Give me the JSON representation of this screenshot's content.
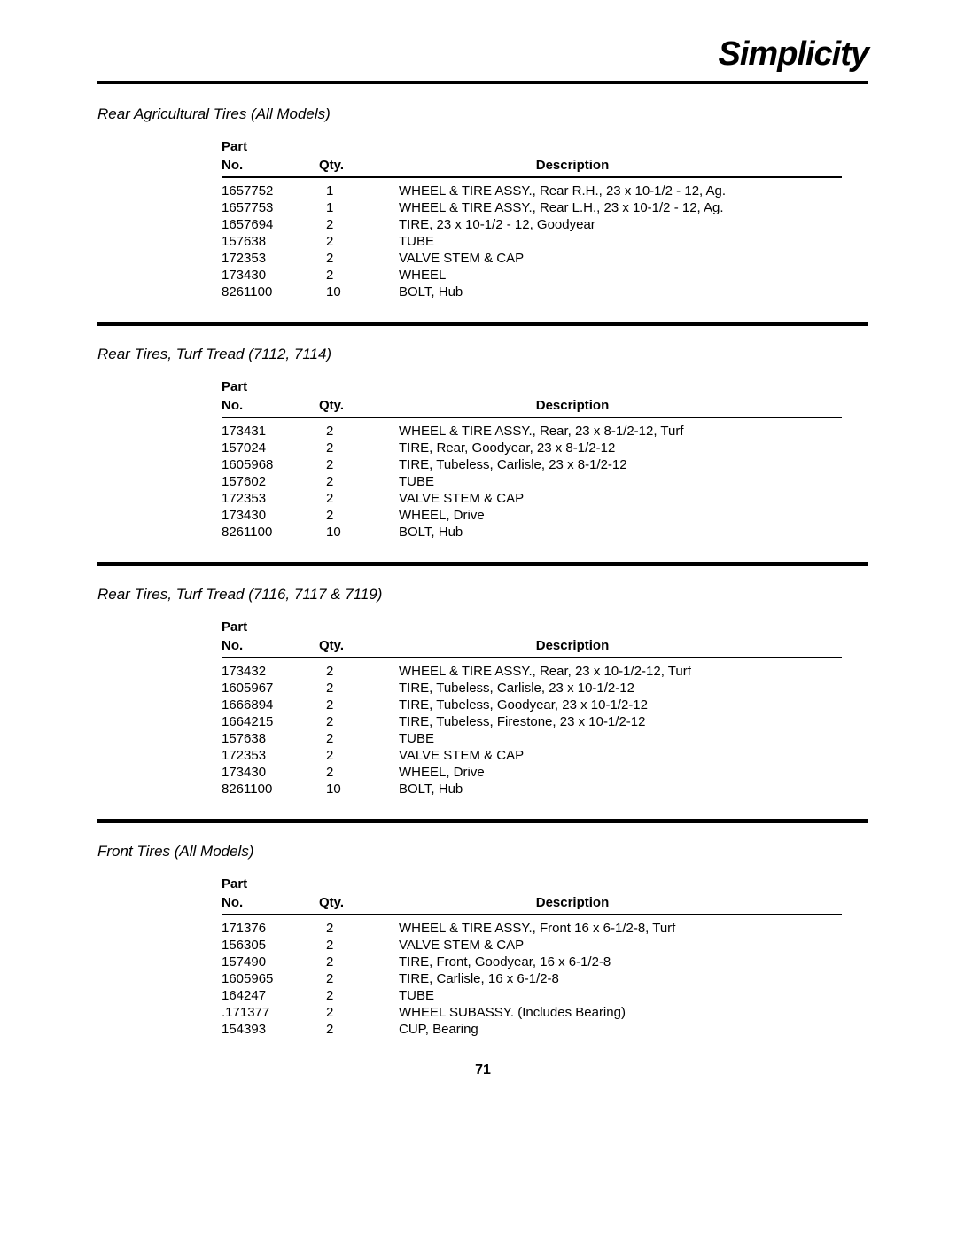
{
  "brand": "Simplicity",
  "page_number": "71",
  "headers": {
    "part_no_1": "Part",
    "part_no_2": "No.",
    "qty": "Qty.",
    "description": "Description"
  },
  "sections": [
    {
      "title": "Rear Agricultural Tires (All Models)",
      "rows": [
        {
          "part": "1657752",
          "qty": "1",
          "desc": "WHEEL & TIRE ASSY., Rear R.H., 23 x 10-1/2 - 12, Ag."
        },
        {
          "part": "1657753",
          "qty": "1",
          "desc": "WHEEL & TIRE ASSY., Rear L.H., 23 x 10-1/2 - 12, Ag."
        },
        {
          "part": "1657694",
          "qty": "2",
          "desc": "TIRE, 23 x 10-1/2 - 12, Goodyear"
        },
        {
          "part": "157638",
          "qty": "2",
          "desc": "TUBE"
        },
        {
          "part": "172353",
          "qty": "2",
          "desc": "VALVE STEM & CAP"
        },
        {
          "part": "173430",
          "qty": "2",
          "desc": "WHEEL"
        },
        {
          "part": "8261100",
          "qty": "10",
          "desc": "BOLT, Hub"
        }
      ]
    },
    {
      "title": "Rear Tires, Turf Tread (7112, 7114)",
      "rows": [
        {
          "part": "173431",
          "qty": "2",
          "desc": "WHEEL & TIRE ASSY., Rear, 23 x 8-1/2-12, Turf"
        },
        {
          "part": "157024",
          "qty": "2",
          "desc": "TIRE, Rear, Goodyear, 23 x 8-1/2-12"
        },
        {
          "part": "1605968",
          "qty": "2",
          "desc": "TIRE, Tubeless, Carlisle, 23 x 8-1/2-12"
        },
        {
          "part": "157602",
          "qty": "2",
          "desc": "TUBE"
        },
        {
          "part": "172353",
          "qty": "2",
          "desc": "VALVE STEM & CAP"
        },
        {
          "part": "173430",
          "qty": "2",
          "desc": "WHEEL, Drive"
        },
        {
          "part": "8261100",
          "qty": "10",
          "desc": "BOLT, Hub"
        }
      ]
    },
    {
      "title": "Rear Tires, Turf Tread (7116, 7117 & 7119)",
      "rows": [
        {
          "part": "173432",
          "qty": "2",
          "desc": "WHEEL & TIRE ASSY., Rear, 23 x 10-1/2-12, Turf"
        },
        {
          "part": "1605967",
          "qty": "2",
          "desc": "TIRE, Tubeless, Carlisle, 23 x 10-1/2-12"
        },
        {
          "part": "1666894",
          "qty": "2",
          "desc": "TIRE, Tubeless, Goodyear, 23 x 10-1/2-12"
        },
        {
          "part": "1664215",
          "qty": "2",
          "desc": "TIRE, Tubeless, Firestone, 23 x 10-1/2-12"
        },
        {
          "part": "157638",
          "qty": "2",
          "desc": "TUBE"
        },
        {
          "part": "172353",
          "qty": "2",
          "desc": "VALVE STEM & CAP"
        },
        {
          "part": "173430",
          "qty": "2",
          "desc": "WHEEL, Drive"
        },
        {
          "part": "8261100",
          "qty": "10",
          "desc": "BOLT, Hub"
        }
      ]
    },
    {
      "title": "Front Tires (All Models)",
      "rows": [
        {
          "part": "171376",
          "qty": "2",
          "desc": "WHEEL & TIRE ASSY., Front 16 x 6-1/2-8, Turf"
        },
        {
          "part": "156305",
          "qty": "2",
          "desc": "VALVE STEM & CAP"
        },
        {
          "part": "157490",
          "qty": "2",
          "desc": "TIRE, Front, Goodyear, 16 x 6-1/2-8"
        },
        {
          "part": "1605965",
          "qty": "2",
          "desc": "TIRE, Carlisle, 16 x 6-1/2-8"
        },
        {
          "part": "164247",
          "qty": "2",
          "desc": "TUBE"
        },
        {
          "part": ".171377",
          "qty": "2",
          "desc": "WHEEL SUBASSY. (Includes Bearing)"
        },
        {
          "part": "154393",
          "qty": "2",
          "desc": "CUP, Bearing"
        }
      ]
    }
  ]
}
